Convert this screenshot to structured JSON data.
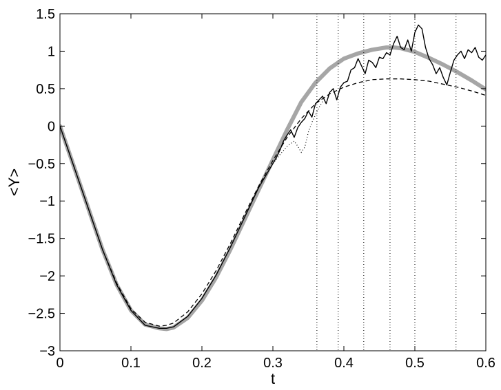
{
  "chart_data": {
    "type": "line",
    "title": "",
    "xlabel": "t",
    "ylabel": "<Y>",
    "xlim": [
      0,
      0.6
    ],
    "ylim": [
      -3,
      1.5
    ],
    "x_ticks": [
      0,
      0.1,
      0.2,
      0.3,
      0.4,
      0.5,
      0.6
    ],
    "x_tick_labels": [
      "0",
      "0.1",
      "0.2",
      "0.3",
      "0.4",
      "0.5",
      "0.6"
    ],
    "y_ticks": [
      -3,
      -2.5,
      -2,
      -1.5,
      -1,
      -0.5,
      0,
      0.5,
      1,
      1.5
    ],
    "y_tick_labels": [
      "−3",
      "−2.5",
      "−2",
      "−1.5",
      "−1",
      "−0.5",
      "0",
      "0.5",
      "1",
      "1.5"
    ],
    "grid": false,
    "vertical_lines_x": [
      0.362,
      0.392,
      0.428,
      0.465,
      0.5,
      0.558
    ],
    "series": [
      {
        "style": "thick-gray",
        "color": "#a6a6a6",
        "x": [
          0,
          0.02,
          0.04,
          0.06,
          0.08,
          0.1,
          0.12,
          0.14,
          0.15,
          0.16,
          0.18,
          0.2,
          0.22,
          0.24,
          0.26,
          0.28,
          0.3,
          0.32,
          0.34,
          0.36,
          0.38,
          0.4,
          0.42,
          0.44,
          0.46,
          0.47,
          0.48,
          0.5,
          0.52,
          0.54,
          0.56,
          0.58,
          0.6
        ],
        "y": [
          0,
          -0.55,
          -1.1,
          -1.65,
          -2.12,
          -2.46,
          -2.65,
          -2.7,
          -2.71,
          -2.69,
          -2.56,
          -2.33,
          -2.02,
          -1.65,
          -1.25,
          -0.85,
          -0.45,
          -0.05,
          0.32,
          0.58,
          0.77,
          0.9,
          0.97,
          1.02,
          1.05,
          1.05,
          1.04,
          0.99,
          0.91,
          0.82,
          0.72,
          0.61,
          0.49
        ]
      },
      {
        "style": "dashed",
        "color": "#000000",
        "x": [
          0,
          0.02,
          0.04,
          0.06,
          0.08,
          0.1,
          0.12,
          0.14,
          0.15,
          0.16,
          0.18,
          0.2,
          0.22,
          0.24,
          0.26,
          0.28,
          0.3,
          0.32,
          0.34,
          0.36,
          0.38,
          0.4,
          0.42,
          0.44,
          0.46,
          0.48,
          0.5,
          0.52,
          0.54,
          0.56,
          0.58,
          0.6
        ],
        "y": [
          0,
          -0.55,
          -1.1,
          -1.65,
          -2.1,
          -2.44,
          -2.62,
          -2.67,
          -2.66,
          -2.63,
          -2.48,
          -2.24,
          -1.93,
          -1.57,
          -1.18,
          -0.8,
          -0.46,
          -0.15,
          0.1,
          0.3,
          0.43,
          0.52,
          0.58,
          0.62,
          0.63,
          0.63,
          0.62,
          0.6,
          0.56,
          0.52,
          0.47,
          0.41
        ]
      },
      {
        "style": "dotted",
        "color": "#000000",
        "x": [
          0.3,
          0.31,
          0.32,
          0.33,
          0.335,
          0.34,
          0.345,
          0.35,
          0.355,
          0.36,
          0.365,
          0.37
        ],
        "y": [
          -0.5,
          -0.38,
          -0.27,
          -0.2,
          -0.27,
          -0.35,
          -0.28,
          -0.08,
          0.05,
          0.15,
          0.25,
          0.33
        ]
      },
      {
        "style": "solid",
        "color": "#000000",
        "x": [
          0,
          0.02,
          0.04,
          0.06,
          0.08,
          0.1,
          0.12,
          0.14,
          0.15,
          0.16,
          0.18,
          0.2,
          0.22,
          0.24,
          0.26,
          0.28,
          0.3,
          0.305,
          0.31,
          0.315,
          0.32,
          0.325,
          0.33,
          0.335,
          0.34,
          0.345,
          0.35,
          0.355,
          0.36,
          0.365,
          0.37,
          0.375,
          0.38,
          0.385,
          0.39,
          0.395,
          0.4,
          0.405,
          0.41,
          0.415,
          0.42,
          0.425,
          0.43,
          0.435,
          0.44,
          0.445,
          0.45,
          0.455,
          0.46,
          0.465,
          0.47,
          0.475,
          0.48,
          0.485,
          0.49,
          0.495,
          0.5,
          0.505,
          0.51,
          0.515,
          0.52,
          0.525,
          0.53,
          0.535,
          0.54,
          0.545,
          0.55,
          0.555,
          0.56,
          0.565,
          0.57,
          0.575,
          0.58,
          0.585,
          0.59,
          0.595,
          0.6
        ],
        "y": [
          0,
          -0.55,
          -1.1,
          -1.65,
          -2.12,
          -2.46,
          -2.66,
          -2.7,
          -2.7,
          -2.68,
          -2.54,
          -2.3,
          -1.99,
          -1.62,
          -1.22,
          -0.82,
          -0.5,
          -0.42,
          -0.32,
          -0.2,
          -0.12,
          -0.05,
          -0.15,
          -0.02,
          0.05,
          0.1,
          0.2,
          0.12,
          0.3,
          0.35,
          0.4,
          0.3,
          0.45,
          0.5,
          0.35,
          0.52,
          0.58,
          0.6,
          0.75,
          0.78,
          0.9,
          0.8,
          0.7,
          0.88,
          0.85,
          0.78,
          0.92,
          0.9,
          0.98,
          0.95,
          1.1,
          1.2,
          1.05,
          1.02,
          1.15,
          1.0,
          1.25,
          1.35,
          1.3,
          1.05,
          0.9,
          0.82,
          0.7,
          0.78,
          0.65,
          0.55,
          0.72,
          0.88,
          0.95,
          1.0,
          0.9,
          1.02,
          0.98,
          1.05,
          0.92,
          0.88,
          0.95
        ]
      }
    ]
  }
}
